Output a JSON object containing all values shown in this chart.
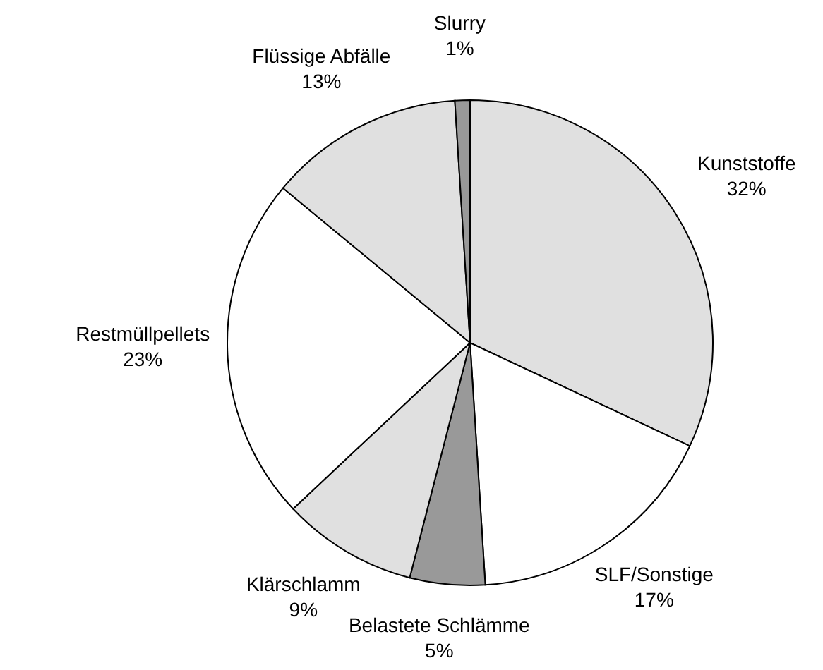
{
  "chart_data": {
    "type": "pie",
    "categories": [
      "Kunststoffe",
      "SLF/Sonstige",
      "Belastete Schlämme",
      "Klärschlamm",
      "Restmüllpellets",
      "Flüssige Abfälle",
      "Slurry"
    ],
    "values": [
      32,
      17,
      5,
      9,
      23,
      13,
      1
    ],
    "colors": [
      "#e0e0e0",
      "#ffffff",
      "#999999",
      "#e0e0e0",
      "#ffffff",
      "#e0e0e0",
      "#999999"
    ],
    "value_labels": [
      "32%",
      "17%",
      "5%",
      "9%",
      "23%",
      "13%",
      "1%"
    ]
  }
}
